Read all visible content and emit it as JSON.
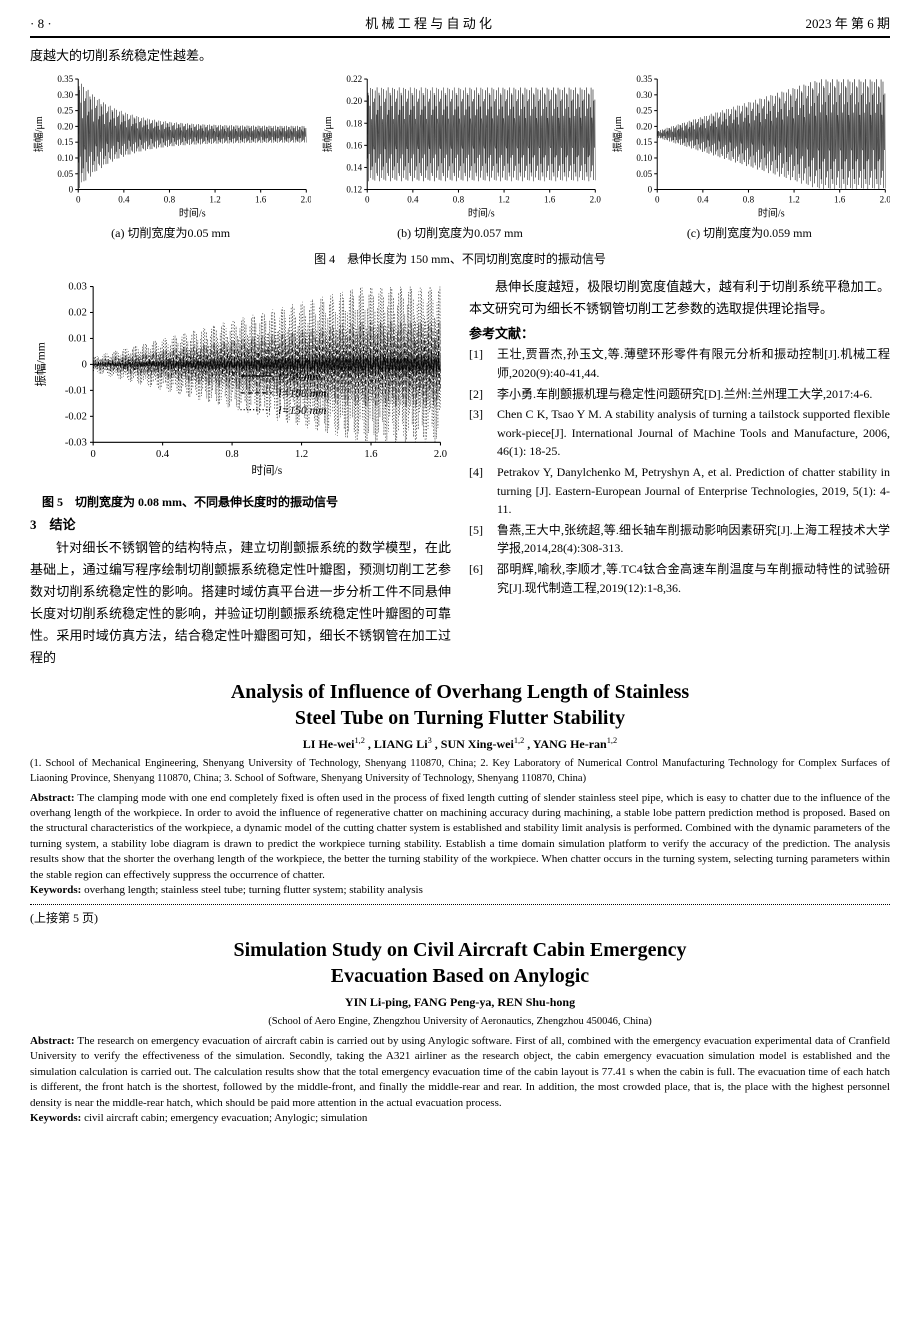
{
  "header": {
    "page_mark": "· 8 ·",
    "journal": "机 械 工 程 与 自 动 化",
    "issue": "2023 年 第 6 期"
  },
  "top_line": "度越大的切削系统稳定性越差。",
  "charts_row": {
    "ylabel": "振幅/μm",
    "xlabel": "时间/s",
    "xticks": [
      "0",
      "0.4",
      "0.8",
      "1.2",
      "1.6",
      "2.0"
    ],
    "a": {
      "yticks": [
        "0",
        "0.05",
        "0.10",
        "0.15",
        "0.20",
        "0.25",
        "0.30",
        "0.35"
      ],
      "cap": "(a) 切削宽度为0.05 mm",
      "env_top": 0.18,
      "env_bot": 0.16,
      "converge": true,
      "color": "#1a1a1a"
    },
    "b": {
      "yticks": [
        "0.12",
        "0.14",
        "0.16",
        "0.18",
        "0.20",
        "0.22"
      ],
      "cap": "(b) 切削宽度为0.057 mm",
      "color": "#1a1a1a"
    },
    "c": {
      "yticks": [
        "0",
        "0.05",
        "0.10",
        "0.15",
        "0.20",
        "0.25",
        "0.30",
        "0.35"
      ],
      "cap": "(c) 切削宽度为0.059 mm",
      "color": "#1a1a1a"
    }
  },
  "fig4_caption": "图 4　悬伸长度为 150 mm、不同切削宽度时的振动信号",
  "fig5": {
    "ylabel": "振幅/mm",
    "xlabel": "时间/s",
    "xticks": [
      "0",
      "0.4",
      "0.8",
      "1.2",
      "1.6",
      "2.0"
    ],
    "yticks": [
      "-0.03",
      "-0.02",
      "-0.01",
      "0",
      "0.01",
      "0.02",
      "0.03"
    ],
    "legend": [
      {
        "label": "l=50 mm",
        "color": "#000000",
        "dash": "0"
      },
      {
        "label": "l=100 mm",
        "color": "#000000",
        "dash": "4 3"
      },
      {
        "label": "l=150 mm",
        "color": "#000000",
        "dash": "1 2"
      }
    ],
    "caption": "图 5　切削宽度为 0.08 mm、不同悬伸长度时的振动信号"
  },
  "sec3_head": "3　结论",
  "left_body": "针对细长不锈钢管的结构特点，建立切削颤振系统的数学模型，在此基础上，通过编写程序绘制切削颤振系统稳定性叶瓣图，预测切削工艺参数对切削系统稳定性的影响。搭建时域仿真平台进一步分析工件不同悬伸长度对切削系统稳定性的影响，并验证切削颤振系统稳定性叶瓣图的可靠性。采用时域仿真方法，结合稳定性叶瓣图可知，细长不锈钢管在加工过程的",
  "right_intro": "悬伸长度越短，极限切削宽度值越大，越有利于切削系统平稳加工。本文研究可为细长不锈钢管切削工艺参数的选取提供理论指导。",
  "ref_head": "参考文献：",
  "refs": [
    {
      "n": "[1]",
      "t": "王壮,贾晋杰,孙玉文,等.薄壁环形零件有限元分析和振动控制[J].机械工程师,2020(9):40-41,44."
    },
    {
      "n": "[2]",
      "t": "李小勇.车削颤振机理与稳定性问题研究[D].兰州:兰州理工大学,2017:4-6."
    },
    {
      "n": "[3]",
      "t": "Chen C K, Tsao Y M. A stability analysis of turning a tailstock supported flexible work-piece[J]. International Journal of Machine Tools and Manufacture, 2006, 46(1): 18-25."
    },
    {
      "n": "[4]",
      "t": "Petrakov Y, Danylchenko M, Petryshyn A, et al. Prediction of chatter stability in turning [J]. Eastern-European Journal of Enterprise Technologies, 2019, 5(1): 4-11."
    },
    {
      "n": "[5]",
      "t": "鲁燕,王大中,张统超,等.细长轴车削振动影响因素研究[J].上海工程技术大学学报,2014,28(4):308-313."
    },
    {
      "n": "[6]",
      "t": "邵明辉,喻秋,李顺才,等.TC4钛合金高速车削温度与车削振动特性的试验研究[J].现代制造工程,2019(12):1-8,36."
    }
  ],
  "eng1": {
    "title1": "Analysis of Influence of Overhang Length of Stainless",
    "title2": "Steel Tube on Turning Flutter Stability",
    "authors": "LI He-wei",
    "authors2": " , LIANG Li",
    "authors3": " , SUN Xing-wei",
    "authors4": " , YANG He-ran",
    "affil": "(1. School of Mechanical Engineering, Shenyang University of Technology, Shenyang 110870, China; 2. Key Laboratory of Numerical Control Manufacturing Technology for Complex Surfaces of Liaoning Province, Shenyang 110870, China; 3. School of Software, Shenyang University of Technology, Shenyang 110870, China)",
    "abs_label": "Abstract:",
    "abs": " The clamping mode with one end completely fixed is often used in the process of fixed length cutting of slender stainless steel pipe, which is easy to chatter due to the influence of the overhang length of the workpiece. In order to avoid the influence of regenerative chatter on machining accuracy during machining, a stable lobe pattern prediction method is proposed. Based on the structural characteristics of the workpiece, a dynamic model of the cutting chatter system is established and stability limit analysis is performed. Combined with the dynamic parameters of the turning system, a stability lobe diagram is drawn to predict the workpiece turning stability. Establish a time domain simulation platform to verify the accuracy of the prediction. The analysis results show that the shorter the overhang length of the workpiece, the better the turning stability of the workpiece. When chatter occurs in the turning system, selecting turning parameters within the stable region can effectively suppress the occurrence of chatter.",
    "kw_label": "Keywords:",
    "kw": " overhang length; stainless steel tube; turning flutter system; stability analysis"
  },
  "cont_note": "(上接第 5 页)",
  "eng2": {
    "title1": "Simulation Study on Civil Aircraft Cabin Emergency",
    "title2": "Evacuation Based on Anylogic",
    "authors": "YIN Li-ping, FANG Peng-ya, REN Shu-hong",
    "affil": "(School of Aero Engine, Zhengzhou University of Aeronautics, Zhengzhou 450046, China)",
    "abs_label": "Abstract:",
    "abs": " The research on emergency evacuation of aircraft cabin is carried out by using Anylogic software. First of all, combined with the emergency evacuation experimental data of Cranfield University to verify the effectiveness of the simulation. Secondly, taking the A321 airliner as the research object, the cabin emergency evacuation simulation model is established and the simulation calculation is carried out. The calculation results show that the total emergency evacuation time of the cabin layout is 77.41 s when the cabin is full. The evacuation time of each hatch is different, the front hatch is the shortest, followed by the middle-front, and finally the middle-rear and rear. In addition, the most crowded place, that is, the place with the highest personnel density is near the middle-rear hatch, which should be paid more attention in the actual evacuation process.",
    "kw_label": "Keywords:",
    "kw": " civil aircraft cabin; emergency evacuation; Anylogic; simulation"
  }
}
